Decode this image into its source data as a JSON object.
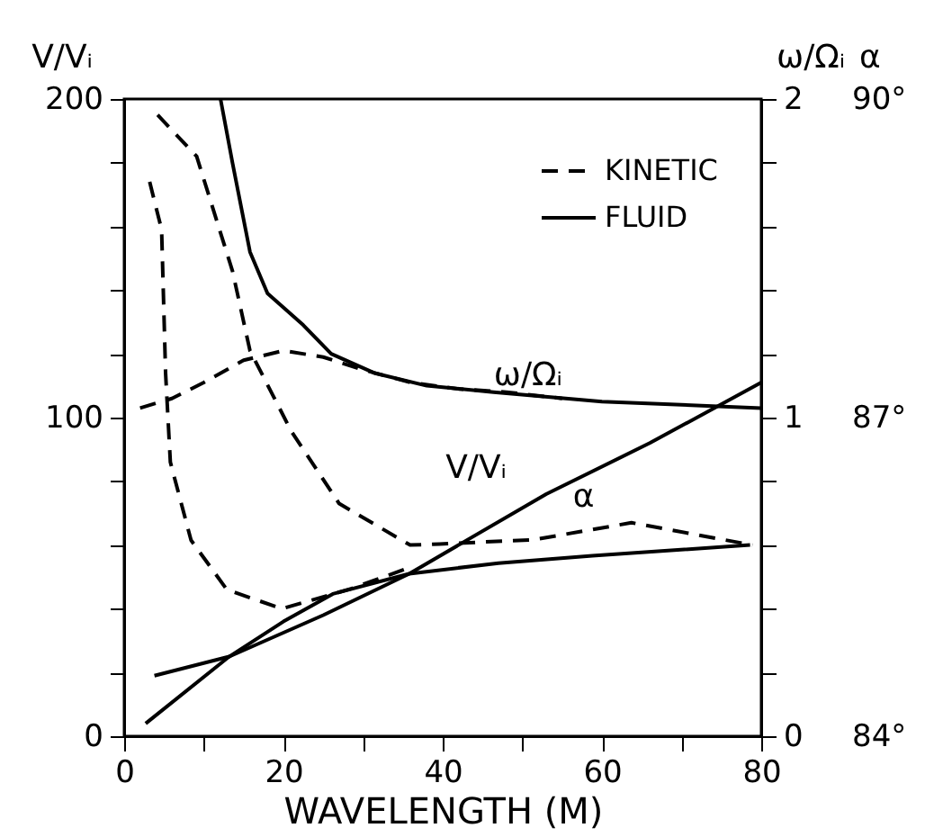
{
  "chart_data": {
    "type": "line",
    "xlabel": "WAVELENGTH (M)",
    "ylabel": "V/Vᵢ",
    "y2label": "ω/Ωᵢ",
    "y3label": "α",
    "xlim": [
      0,
      80
    ],
    "xticks": [
      0,
      {
        "value": 10,
        "label": null
      },
      20,
      {
        "value": 30,
        "label": null
      },
      40,
      {
        "value": 50,
        "label": null
      },
      60,
      {
        "value": 70,
        "label": null
      },
      80
    ],
    "ylim": [
      0,
      200
    ],
    "yticks": [
      0,
      {
        "value": 20,
        "label": null
      },
      {
        "value": 40,
        "label": null
      },
      {
        "value": 60,
        "label": null
      },
      {
        "value": 80,
        "label": null
      },
      100,
      {
        "value": 120,
        "label": null
      },
      {
        "value": 140,
        "label": null
      },
      {
        "value": 160,
        "label": null
      },
      {
        "value": 180,
        "label": null
      },
      200
    ],
    "y2lim": [
      0,
      2
    ],
    "y2ticks": [
      0,
      {
        "value": 0.2,
        "label": null
      },
      {
        "value": 0.4,
        "label": null
      },
      {
        "value": 0.6,
        "label": null
      },
      {
        "value": 0.8,
        "label": null
      },
      1,
      {
        "value": 1.2,
        "label": null
      },
      {
        "value": 1.4,
        "label": null
      },
      {
        "value": 1.6,
        "label": null
      },
      {
        "value": 1.8,
        "label": null
      },
      2
    ],
    "y3lim": [
      84,
      90
    ],
    "y3ticks": [
      {
        "value": 84,
        "label": "84°"
      },
      {
        "value": 87,
        "label": "87°"
      },
      {
        "value": 90,
        "label": "90°"
      }
    ],
    "legend": "top right",
    "grid": false,
    "series": [
      {
        "name": "KINETIC",
        "color": "#000000",
        "line_style": "dashed",
        "axis": "y",
        "x": [
          3.2,
          4.7,
          5.2,
          5.8,
          8.4,
          12.9,
          19.8,
          28.5,
          35.9
        ],
        "values": [
          174,
          159,
          114,
          86,
          61.5,
          46,
          40,
          46.3,
          53
        ]
      },
      {
        "name": "FLUID",
        "color": "#000000",
        "line_style": "solid",
        "axis": "y",
        "x": [
          2.7,
          13.2,
          25,
          35.8,
          53,
          66,
          80
        ],
        "values": [
          4,
          25,
          38,
          51,
          76,
          92,
          111
        ]
      },
      {
        "color": "#000000",
        "line_style": "dashed",
        "axis": "y2",
        "x": [
          2,
          6,
          10,
          15,
          20,
          25,
          30,
          36,
          42,
          48,
          55
        ],
        "values": [
          1.03,
          1.06,
          1.11,
          1.18,
          1.21,
          1.19,
          1.15,
          1.11,
          1.09,
          1.08,
          1.06
        ]
      },
      {
        "color": "#000000",
        "line_style": "solid",
        "axis": "y2",
        "x": [
          12.1,
          13.6,
          15.8,
          18,
          22.5,
          26,
          31.4,
          38,
          46.4,
          60,
          80
        ],
        "values": [
          2.0,
          1.8,
          1.52,
          1.39,
          1.29,
          1.2,
          1.14,
          1.1,
          1.08,
          1.05,
          1.03
        ]
      },
      {
        "color": "#000000",
        "line_style": "dashed",
        "axis": "y3",
        "x": [
          4.2,
          9.1,
          13.6,
          15.8,
          21,
          27,
          35.9,
          39.6,
          51.4,
          63.7,
          78.9
        ],
        "values": [
          89.85,
          89.46,
          88.38,
          87.63,
          86.87,
          86.19,
          85.8,
          85.81,
          85.85,
          86.01,
          85.8
        ]
      },
      {
        "color": "#000000",
        "line_style": "solid",
        "axis": "y3",
        "x": [
          3.8,
          13.2,
          20,
          26.2,
          35.8,
          47,
          58.8,
          78.6
        ],
        "values": [
          84.57,
          84.75,
          85.08,
          85.34,
          85.53,
          85.63,
          85.7,
          85.8
        ]
      }
    ],
    "annotations": [
      {
        "text": "ω/Ωᵢ",
        "x": 60,
        "y": 105
      },
      {
        "text": "V/Vᵢ",
        "x": 53,
        "y": 76
      },
      {
        "text": "α",
        "x": 64,
        "y": 67
      }
    ]
  }
}
